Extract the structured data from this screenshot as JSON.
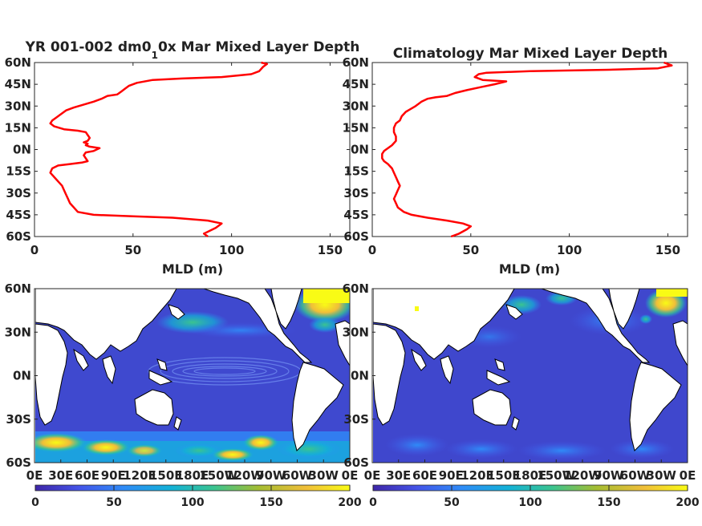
{
  "chart_data": [
    {
      "type": "line",
      "title": "YR 001-002 dm0_1 0x Mar Mixed Layer Depth",
      "title_main": "YR 001-002 dm0",
      "title_sub": "1",
      "title_rest": "0x Mar Mixed Layer Depth",
      "xlabel": "MLD (m)",
      "ylabel": "",
      "xlim": [
        0,
        160
      ],
      "ylim": [
        -60,
        60
      ],
      "xticks": [
        "0",
        "50",
        "100",
        "150"
      ],
      "yticks": [
        "60N",
        "45N",
        "30N",
        "15N",
        "0N",
        "15S",
        "30S",
        "45S",
        "60S"
      ],
      "series": [
        {
          "color": "#ff0000",
          "points": [
            [
              88,
              -60
            ],
            [
              86,
              -58
            ],
            [
              89,
              -56
            ],
            [
              92,
              -54
            ],
            [
              95,
              -51
            ],
            [
              88,
              -49
            ],
            [
              70,
              -47
            ],
            [
              50,
              -46
            ],
            [
              30,
              -45
            ],
            [
              22,
              -43
            ],
            [
              20,
              -40
            ],
            [
              18,
              -37
            ],
            [
              17,
              -34
            ],
            [
              16,
              -31
            ],
            [
              15,
              -28
            ],
            [
              14,
              -25
            ],
            [
              12,
              -22
            ],
            [
              10,
              -19
            ],
            [
              8,
              -16
            ],
            [
              9,
              -13
            ],
            [
              12,
              -11
            ],
            [
              18,
              -10
            ],
            [
              24,
              -9
            ],
            [
              27,
              -8
            ],
            [
              26,
              -6
            ],
            [
              25,
              -4
            ],
            [
              26,
              -2
            ],
            [
              30,
              -1
            ],
            [
              33,
              1
            ],
            [
              28,
              2
            ],
            [
              26,
              3
            ],
            [
              27,
              4
            ],
            [
              25,
              5
            ],
            [
              27,
              6
            ],
            [
              28,
              8
            ],
            [
              27,
              10
            ],
            [
              26,
              12
            ],
            [
              22,
              13
            ],
            [
              15,
              14
            ],
            [
              10,
              16
            ],
            [
              8,
              18
            ],
            [
              9,
              20
            ],
            [
              11,
              22
            ],
            [
              13,
              24
            ],
            [
              16,
              27
            ],
            [
              20,
              29
            ],
            [
              25,
              31
            ],
            [
              30,
              33
            ],
            [
              34,
              35
            ],
            [
              37,
              37
            ],
            [
              42,
              38
            ],
            [
              44,
              40
            ],
            [
              46,
              42
            ],
            [
              48,
              44
            ],
            [
              52,
              46
            ],
            [
              60,
              48
            ],
            [
              75,
              49
            ],
            [
              95,
              50
            ],
            [
              110,
              52
            ],
            [
              114,
              54
            ],
            [
              116,
              57
            ],
            [
              118,
              59
            ],
            [
              115,
              60
            ]
          ]
        }
      ]
    },
    {
      "type": "line",
      "title": "Climatology Mar Mixed Layer Depth",
      "xlabel": "MLD (m)",
      "ylabel": "",
      "xlim": [
        0,
        160
      ],
      "ylim": [
        -60,
        60
      ],
      "xticks": [
        "0",
        "50",
        "100",
        "150"
      ],
      "yticks": [
        "60N",
        "45N",
        "30N",
        "15N",
        "0N",
        "15S",
        "30S",
        "45S",
        "60S"
      ],
      "series": [
        {
          "color": "#ff0000",
          "points": [
            [
              40,
              -60
            ],
            [
              44,
              -58
            ],
            [
              48,
              -55
            ],
            [
              50,
              -53
            ],
            [
              46,
              -51
            ],
            [
              38,
              -49
            ],
            [
              28,
              -47
            ],
            [
              20,
              -45
            ],
            [
              16,
              -43
            ],
            [
              13,
              -40
            ],
            [
              12,
              -37
            ],
            [
              11,
              -34
            ],
            [
              12,
              -31
            ],
            [
              13,
              -28
            ],
            [
              14,
              -25
            ],
            [
              13,
              -22
            ],
            [
              12,
              -19
            ],
            [
              11,
              -16
            ],
            [
              10,
              -13
            ],
            [
              8,
              -10
            ],
            [
              6,
              -8
            ],
            [
              5,
              -6
            ],
            [
              5,
              -3
            ],
            [
              6,
              -1
            ],
            [
              8,
              1
            ],
            [
              10,
              3
            ],
            [
              12,
              6
            ],
            [
              12,
              9
            ],
            [
              11,
              12
            ],
            [
              11,
              15
            ],
            [
              12,
              18
            ],
            [
              14,
              20
            ],
            [
              15,
              23
            ],
            [
              17,
              26
            ],
            [
              22,
              30
            ],
            [
              25,
              33
            ],
            [
              28,
              35
            ],
            [
              32,
              36
            ],
            [
              38,
              37
            ],
            [
              42,
              39
            ],
            [
              48,
              41
            ],
            [
              55,
              43
            ],
            [
              62,
              45
            ],
            [
              68,
              47
            ],
            [
              56,
              48
            ],
            [
              52,
              50
            ],
            [
              54,
              52
            ],
            [
              58,
              53
            ],
            [
              80,
              54
            ],
            [
              120,
              55
            ],
            [
              145,
              56
            ],
            [
              152,
              58
            ],
            [
              150,
              59
            ],
            [
              148,
              60
            ]
          ]
        }
      ]
    },
    {
      "type": "heatmap",
      "title": "",
      "xlabel": "",
      "ylabel": "",
      "yticks": [
        "60N",
        "30N",
        "0N",
        "30S",
        "60S"
      ],
      "xticks": [
        "0E",
        "30E",
        "60E",
        "90E",
        "120E",
        "150E",
        "180E",
        "150W",
        "120W",
        "90W",
        "60W",
        "30W",
        "0E"
      ],
      "colorbar_ticks": [
        "0",
        "50",
        "100",
        "150",
        "200"
      ],
      "clim": [
        0,
        200
      ],
      "colormap": [
        "#3e26a8",
        "#4454e8",
        "#2f8bf7",
        "#13b1d7",
        "#3bc48f",
        "#a4bd32",
        "#f0be39",
        "#f9fb15"
      ],
      "land_color": "#ffffff"
    },
    {
      "type": "heatmap",
      "title": "",
      "xlabel": "",
      "ylabel": "",
      "yticks": [
        "60N",
        "30N",
        "0N",
        "30S",
        "60S"
      ],
      "xticks": [
        "0E",
        "30E",
        "60E",
        "90E",
        "120E",
        "150E",
        "180E",
        "150W",
        "120W",
        "90W",
        "60W",
        "30W",
        "0E"
      ],
      "colorbar_ticks": [
        "0",
        "50",
        "100",
        "150",
        "200"
      ],
      "clim": [
        0,
        200
      ],
      "colormap": [
        "#3e26a8",
        "#4454e8",
        "#2f8bf7",
        "#13b1d7",
        "#3bc48f",
        "#a4bd32",
        "#f0be39",
        "#f9fb15"
      ],
      "land_color": "#ffffff"
    }
  ]
}
